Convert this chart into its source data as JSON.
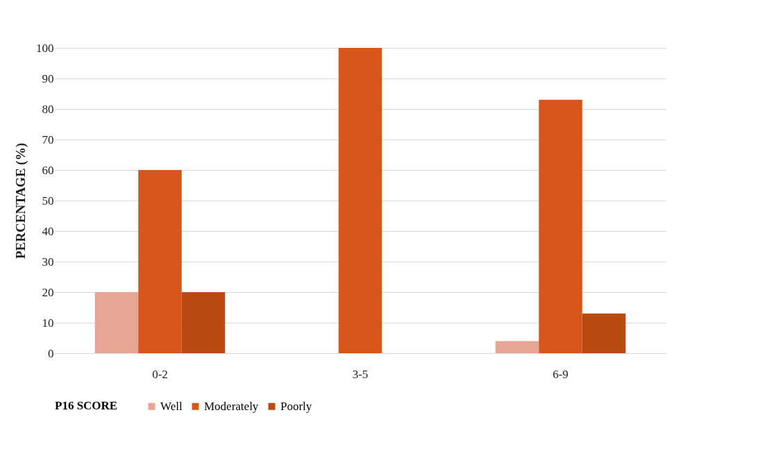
{
  "chart_data": {
    "type": "bar",
    "ylabel": "PERCENTAGE (%)",
    "legend_title": "P16 SCORE",
    "categories": [
      "0-2",
      "3-5",
      "6-9"
    ],
    "series": [
      {
        "name": "Well",
        "color": "#e8a594",
        "values": [
          20,
          0,
          4
        ]
      },
      {
        "name": "Moderately",
        "color": "#d9561a",
        "values": [
          60,
          100,
          83
        ]
      },
      {
        "name": "Poorly",
        "color": "#b94a12",
        "values": [
          20,
          0,
          13
        ]
      }
    ],
    "ylim": [
      0,
      100
    ],
    "yticks": [
      0,
      10,
      20,
      30,
      40,
      50,
      60,
      70,
      80,
      90,
      100
    ],
    "grid": "y",
    "legend": "bottom"
  }
}
